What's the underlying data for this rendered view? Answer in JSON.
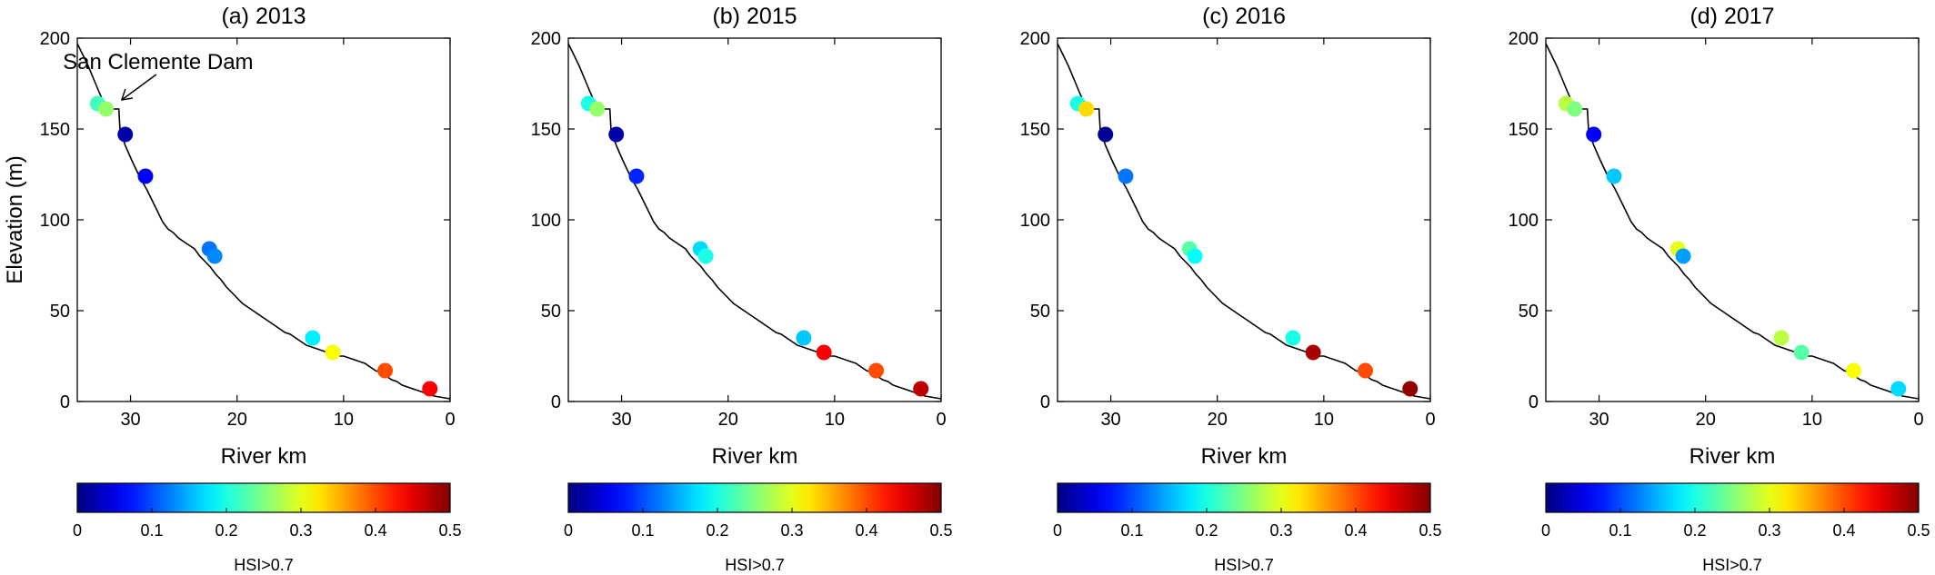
{
  "figure": {
    "annotation": {
      "text": "San Clemente Dam",
      "target_x": 31.0,
      "target_y": 165
    }
  },
  "colors": {
    "axis": "#000000",
    "profile_line": "#000000"
  },
  "colormap": "jet",
  "chart_data": [
    {
      "type": "scatter",
      "title": "(a) 2013",
      "xlabel": "River km",
      "ylabel": "Elevation (m)",
      "xlim": [
        35,
        0
      ],
      "x_reversed": true,
      "ylim": [
        0,
        200
      ],
      "xticks": [
        30,
        20,
        10,
        0
      ],
      "xtick_labels": [
        "30",
        "20",
        "10",
        "0"
      ],
      "yticks": [
        0,
        50,
        100,
        150,
        200
      ],
      "ytick_labels": [
        "0",
        "50",
        "100",
        "150",
        "200"
      ],
      "colorbar": {
        "label": "HSI>0.7",
        "range": [
          0,
          0.5
        ],
        "ticks": [
          0,
          0.1,
          0.2,
          0.3,
          0.4,
          0.5
        ],
        "tick_labels": [
          "0",
          "0.1",
          "0.2",
          "0.3",
          "0.4",
          "0.5"
        ]
      },
      "profile": {
        "x": [
          35,
          34.5,
          34,
          33.5,
          33,
          32.7,
          32.3,
          32,
          31.7,
          31.4,
          31.1,
          31.0,
          30.8,
          30.5,
          30.2,
          29.9,
          29.5,
          29,
          28.5,
          28,
          27.5,
          27,
          26.5,
          26,
          25.5,
          25,
          24.5,
          24,
          23.5,
          23,
          22.5,
          22,
          21.5,
          21,
          20.5,
          20,
          19.5,
          19,
          18.5,
          18,
          17.5,
          17,
          16.5,
          16,
          15.5,
          15,
          14.5,
          14,
          13.5,
          13,
          12.5,
          12,
          11.5,
          11,
          10.5,
          10,
          9.5,
          9,
          8.5,
          8,
          7.5,
          7,
          6.5,
          6,
          5.5,
          5,
          4.5,
          4,
          3.5,
          3,
          2.5,
          2,
          1.5,
          1,
          0.5,
          0
        ],
        "y": [
          197,
          191,
          185,
          178,
          171,
          167,
          164,
          162,
          161,
          161,
          161,
          150,
          146,
          141,
          137,
          133,
          128,
          122,
          117,
          111,
          105,
          99,
          95,
          93,
          90,
          88,
          86,
          84,
          80,
          77,
          74,
          70,
          67,
          63,
          60,
          57,
          54,
          52,
          50,
          48,
          46,
          44,
          42,
          40,
          38,
          37,
          35,
          33,
          31,
          30,
          29,
          28,
          27,
          26,
          25,
          25,
          24,
          23,
          22,
          21,
          19,
          17,
          16,
          14,
          12,
          11,
          9,
          8,
          7,
          6,
          5,
          4,
          3,
          2.5,
          2,
          1.5
        ]
      },
      "points": [
        {
          "x": 33.1,
          "y": 164,
          "value": 0.22
        },
        {
          "x": 32.3,
          "y": 161,
          "value": 0.26
        },
        {
          "x": 30.5,
          "y": 147,
          "value": 0.02
        },
        {
          "x": 28.6,
          "y": 124,
          "value": 0.06
        },
        {
          "x": 22.6,
          "y": 84,
          "value": 0.12
        },
        {
          "x": 22.1,
          "y": 80,
          "value": 0.13
        },
        {
          "x": 12.9,
          "y": 35,
          "value": 0.18
        },
        {
          "x": 11.0,
          "y": 27,
          "value": 0.31
        },
        {
          "x": 6.1,
          "y": 17,
          "value": 0.4
        },
        {
          "x": 1.9,
          "y": 7,
          "value": 0.44
        }
      ]
    },
    {
      "type": "scatter",
      "title": "(b) 2015",
      "xlabel": "River km",
      "ylabel": "",
      "xlim": [
        35,
        0
      ],
      "x_reversed": true,
      "ylim": [
        0,
        200
      ],
      "xticks": [
        30,
        20,
        10,
        0
      ],
      "xtick_labels": [
        "30",
        "20",
        "10",
        "0"
      ],
      "yticks": [
        0,
        50,
        100,
        150,
        200
      ],
      "ytick_labels": [
        "0",
        "50",
        "100",
        "150",
        "200"
      ],
      "colorbar": {
        "label": "HSI>0.7",
        "range": [
          0,
          0.5
        ],
        "ticks": [
          0,
          0.1,
          0.2,
          0.3,
          0.4,
          0.5
        ],
        "tick_labels": [
          "0",
          "0.1",
          "0.2",
          "0.3",
          "0.4",
          "0.5"
        ]
      },
      "profile": {
        "x": [
          35,
          34.5,
          34,
          33.5,
          33,
          32.7,
          32.3,
          32,
          31.7,
          31.4,
          31.1,
          31.0,
          30.8,
          30.5,
          30.2,
          29.9,
          29.5,
          29,
          28.5,
          28,
          27.5,
          27,
          26.5,
          26,
          25.5,
          25,
          24.5,
          24,
          23.5,
          23,
          22.5,
          22,
          21.5,
          21,
          20.5,
          20,
          19.5,
          19,
          18.5,
          18,
          17.5,
          17,
          16.5,
          16,
          15.5,
          15,
          14.5,
          14,
          13.5,
          13,
          12.5,
          12,
          11.5,
          11,
          10.5,
          10,
          9.5,
          9,
          8.5,
          8,
          7.5,
          7,
          6.5,
          6,
          5.5,
          5,
          4.5,
          4,
          3.5,
          3,
          2.5,
          2,
          1.5,
          1,
          0.5,
          0
        ],
        "y": [
          197,
          191,
          185,
          178,
          171,
          167,
          164,
          162,
          161,
          161,
          161,
          150,
          146,
          141,
          137,
          133,
          128,
          122,
          117,
          111,
          105,
          99,
          95,
          93,
          90,
          88,
          86,
          84,
          80,
          77,
          74,
          70,
          67,
          63,
          60,
          57,
          54,
          52,
          50,
          48,
          46,
          44,
          42,
          40,
          38,
          37,
          35,
          33,
          31,
          30,
          29,
          28,
          27,
          26,
          25,
          25,
          24,
          23,
          22,
          21,
          19,
          17,
          16,
          14,
          12,
          11,
          9,
          8,
          7,
          6,
          5,
          4,
          3,
          2.5,
          2,
          1.5
        ]
      },
      "points": [
        {
          "x": 33.1,
          "y": 164,
          "value": 0.2
        },
        {
          "x": 32.3,
          "y": 161,
          "value": 0.26
        },
        {
          "x": 30.5,
          "y": 147,
          "value": 0.02
        },
        {
          "x": 28.6,
          "y": 124,
          "value": 0.08
        },
        {
          "x": 22.6,
          "y": 84,
          "value": 0.17
        },
        {
          "x": 22.1,
          "y": 80,
          "value": 0.2
        },
        {
          "x": 12.9,
          "y": 35,
          "value": 0.16
        },
        {
          "x": 11.0,
          "y": 27,
          "value": 0.44
        },
        {
          "x": 6.1,
          "y": 17,
          "value": 0.4
        },
        {
          "x": 1.9,
          "y": 7,
          "value": 0.47
        }
      ]
    },
    {
      "type": "scatter",
      "title": "(c) 2016",
      "xlabel": "River km",
      "ylabel": "",
      "xlim": [
        35,
        0
      ],
      "x_reversed": true,
      "ylim": [
        0,
        200
      ],
      "xticks": [
        30,
        20,
        10,
        0
      ],
      "xtick_labels": [
        "30",
        "20",
        "10",
        "0"
      ],
      "yticks": [
        0,
        50,
        100,
        150,
        200
      ],
      "ytick_labels": [
        "0",
        "50",
        "100",
        "150",
        "200"
      ],
      "colorbar": {
        "label": "HSI>0.7",
        "range": [
          0,
          0.5
        ],
        "ticks": [
          0,
          0.1,
          0.2,
          0.3,
          0.4,
          0.5
        ],
        "tick_labels": [
          "0",
          "0.1",
          "0.2",
          "0.3",
          "0.4",
          "0.5"
        ]
      },
      "profile": {
        "x": [
          35,
          34.5,
          34,
          33.5,
          33,
          32.7,
          32.3,
          32,
          31.7,
          31.4,
          31.1,
          31.0,
          30.8,
          30.5,
          30.2,
          29.9,
          29.5,
          29,
          28.5,
          28,
          27.5,
          27,
          26.5,
          26,
          25.5,
          25,
          24.5,
          24,
          23.5,
          23,
          22.5,
          22,
          21.5,
          21,
          20.5,
          20,
          19.5,
          19,
          18.5,
          18,
          17.5,
          17,
          16.5,
          16,
          15.5,
          15,
          14.5,
          14,
          13.5,
          13,
          12.5,
          12,
          11.5,
          11,
          10.5,
          10,
          9.5,
          9,
          8.5,
          8,
          7.5,
          7,
          6.5,
          6,
          5.5,
          5,
          4.5,
          4,
          3.5,
          3,
          2.5,
          2,
          1.5,
          1,
          0.5,
          0
        ],
        "y": [
          197,
          191,
          185,
          178,
          171,
          167,
          164,
          162,
          161,
          161,
          161,
          150,
          146,
          141,
          137,
          133,
          128,
          122,
          117,
          111,
          105,
          99,
          95,
          93,
          90,
          88,
          86,
          84,
          80,
          77,
          74,
          70,
          67,
          63,
          60,
          57,
          54,
          52,
          50,
          48,
          46,
          44,
          42,
          40,
          38,
          37,
          35,
          33,
          31,
          30,
          29,
          28,
          27,
          26,
          25,
          25,
          24,
          23,
          22,
          21,
          19,
          17,
          16,
          14,
          12,
          11,
          9,
          8,
          7,
          6,
          5,
          4,
          3,
          2.5,
          2,
          1.5
        ]
      },
      "points": [
        {
          "x": 33.1,
          "y": 164,
          "value": 0.2
        },
        {
          "x": 32.3,
          "y": 161,
          "value": 0.33
        },
        {
          "x": 30.5,
          "y": 147,
          "value": 0.01
        },
        {
          "x": 28.6,
          "y": 124,
          "value": 0.12
        },
        {
          "x": 22.6,
          "y": 84,
          "value": 0.23
        },
        {
          "x": 22.1,
          "y": 80,
          "value": 0.19
        },
        {
          "x": 12.9,
          "y": 35,
          "value": 0.2
        },
        {
          "x": 11.0,
          "y": 27,
          "value": 0.48
        },
        {
          "x": 6.1,
          "y": 17,
          "value": 0.4
        },
        {
          "x": 1.9,
          "y": 7,
          "value": 0.49
        }
      ]
    },
    {
      "type": "scatter",
      "title": "(d) 2017",
      "xlabel": "River km",
      "ylabel": "",
      "xlim": [
        35,
        0
      ],
      "x_reversed": true,
      "ylim": [
        0,
        200
      ],
      "xticks": [
        30,
        20,
        10,
        0
      ],
      "xtick_labels": [
        "30",
        "20",
        "10",
        "0"
      ],
      "yticks": [
        0,
        50,
        100,
        150,
        200
      ],
      "ytick_labels": [
        "0",
        "50",
        "100",
        "150",
        "200"
      ],
      "colorbar": {
        "label": "HSI>0.7",
        "range": [
          0,
          0.5
        ],
        "ticks": [
          0,
          0.1,
          0.2,
          0.3,
          0.4,
          0.5
        ],
        "tick_labels": [
          "0",
          "0.1",
          "0.2",
          "0.3",
          "0.4",
          "0.5"
        ]
      },
      "profile": {
        "x": [
          35,
          34.5,
          34,
          33.5,
          33,
          32.7,
          32.3,
          32,
          31.7,
          31.4,
          31.1,
          31.0,
          30.8,
          30.5,
          30.2,
          29.9,
          29.5,
          29,
          28.5,
          28,
          27.5,
          27,
          26.5,
          26,
          25.5,
          25,
          24.5,
          24,
          23.5,
          23,
          22.5,
          22,
          21.5,
          21,
          20.5,
          20,
          19.5,
          19,
          18.5,
          18,
          17.5,
          17,
          16.5,
          16,
          15.5,
          15,
          14.5,
          14,
          13.5,
          13,
          12.5,
          12,
          11.5,
          11,
          10.5,
          10,
          9.5,
          9,
          8.5,
          8,
          7.5,
          7,
          6.5,
          6,
          5.5,
          5,
          4.5,
          4,
          3.5,
          3,
          2.5,
          2,
          1.5,
          1,
          0.5,
          0
        ],
        "y": [
          197,
          191,
          185,
          178,
          171,
          167,
          164,
          162,
          161,
          161,
          161,
          150,
          146,
          141,
          137,
          133,
          128,
          122,
          117,
          111,
          105,
          99,
          95,
          93,
          90,
          88,
          86,
          84,
          80,
          77,
          74,
          70,
          67,
          63,
          60,
          57,
          54,
          52,
          50,
          48,
          46,
          44,
          42,
          40,
          38,
          37,
          35,
          33,
          31,
          30,
          29,
          28,
          27,
          26,
          25,
          25,
          24,
          23,
          22,
          21,
          19,
          17,
          16,
          14,
          12,
          11,
          9,
          8,
          7,
          6,
          5,
          4,
          3,
          2.5,
          2,
          1.5
        ]
      },
      "points": [
        {
          "x": 33.1,
          "y": 164,
          "value": 0.28
        },
        {
          "x": 32.3,
          "y": 161,
          "value": 0.25
        },
        {
          "x": 30.5,
          "y": 147,
          "value": 0.06
        },
        {
          "x": 28.6,
          "y": 124,
          "value": 0.16
        },
        {
          "x": 22.6,
          "y": 84,
          "value": 0.3
        },
        {
          "x": 22.1,
          "y": 80,
          "value": 0.14
        },
        {
          "x": 12.9,
          "y": 35,
          "value": 0.28
        },
        {
          "x": 11.0,
          "y": 27,
          "value": 0.23
        },
        {
          "x": 6.1,
          "y": 17,
          "value": 0.31
        },
        {
          "x": 1.9,
          "y": 7,
          "value": 0.17
        }
      ]
    }
  ]
}
